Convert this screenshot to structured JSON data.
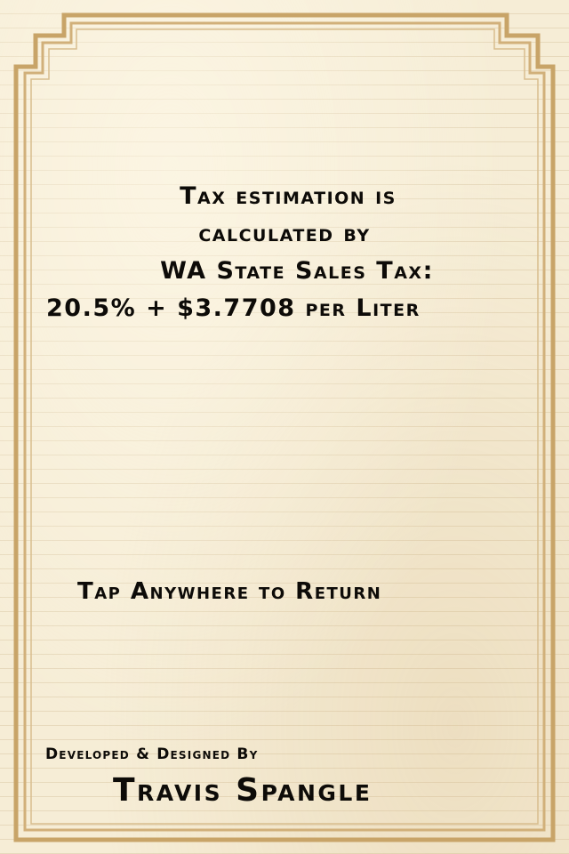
{
  "info": {
    "line1": "Tax estimation is",
    "line2": "calculated by",
    "line3": "WA State Sales Tax:",
    "line4": "20.5%  + $3.7708 per Liter"
  },
  "tap_hint": "Tap Anywhere to Return",
  "credits": {
    "label": "Developed & Designed By",
    "name": "Travis Spangle"
  },
  "colors": {
    "paper": "#f6edd6",
    "frame": "#c9a56b",
    "text": "#0d0b08"
  }
}
